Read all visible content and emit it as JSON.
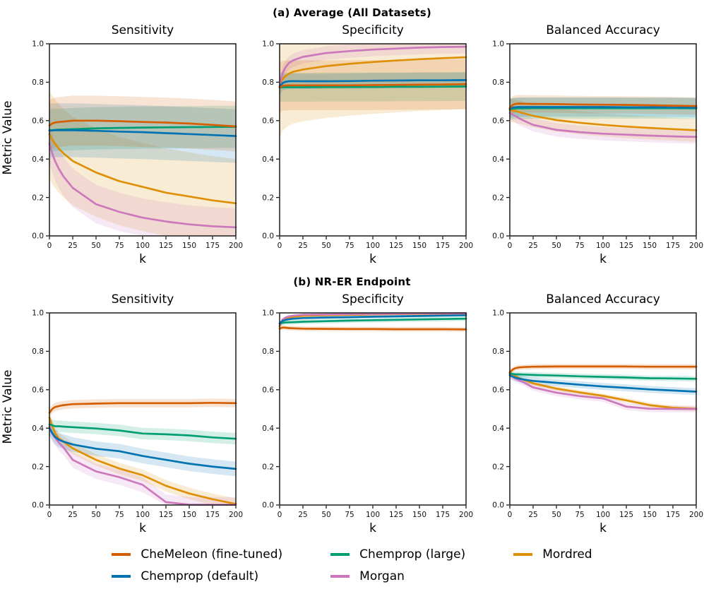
{
  "figure": {
    "ylabel": "Metric Value",
    "xlabel": "k",
    "sections": [
      {
        "label": "(a) Average (All Datasets)"
      },
      {
        "label": "(b) NR-ER Endpoint"
      }
    ]
  },
  "legend": {
    "position": "bottom-center",
    "items": [
      {
        "label": "CheMeleon (fine-tuned)",
        "color": "#d55e00"
      },
      {
        "label": "Chemprop (default)",
        "color": "#0173b2"
      },
      {
        "label": "Chemprop (large)",
        "color": "#029e73"
      },
      {
        "label": "Morgan",
        "color": "#cc78bc"
      },
      {
        "label": "Mordred",
        "color": "#de8f05"
      }
    ]
  },
  "chart_data": [
    {
      "type": "line",
      "section": "(a) Average (All Datasets)",
      "title": "Sensitivity",
      "xlabel": "k",
      "ylabel": "Metric Value",
      "xlim": [
        0,
        200
      ],
      "ylim": [
        0.0,
        1.0
      ],
      "xticks": [
        0,
        25,
        50,
        75,
        100,
        125,
        150,
        175,
        200
      ],
      "yticks": [
        0.0,
        0.2,
        0.4,
        0.6,
        0.8,
        1.0
      ],
      "grid": false,
      "x": [
        0,
        3,
        6,
        10,
        15,
        25,
        50,
        75,
        100,
        125,
        150,
        175,
        200
      ],
      "series": [
        {
          "name": "Mordred",
          "color": "#de8f05",
          "band": 0.23,
          "values": [
            0.53,
            0.5,
            0.48,
            0.455,
            0.43,
            0.39,
            0.33,
            0.285,
            0.255,
            0.225,
            0.205,
            0.185,
            0.17
          ]
        },
        {
          "name": "Morgan",
          "color": "#cc78bc",
          "band": 0.1,
          "values": [
            0.48,
            0.43,
            0.39,
            0.35,
            0.31,
            0.25,
            0.165,
            0.125,
            0.095,
            0.075,
            0.06,
            0.05,
            0.045
          ]
        },
        {
          "name": "Chemprop (large)",
          "color": "#029e73",
          "band": 0.11,
          "values": [
            0.55,
            0.55,
            0.552,
            0.553,
            0.554,
            0.556,
            0.56,
            0.562,
            0.564,
            0.565,
            0.566,
            0.567,
            0.568
          ]
        },
        {
          "name": "Chemprop (default)",
          "color": "#0173b2",
          "band": 0.14,
          "values": [
            0.548,
            0.549,
            0.55,
            0.55,
            0.55,
            0.55,
            0.547,
            0.543,
            0.54,
            0.535,
            0.53,
            0.525,
            0.52
          ]
        },
        {
          "name": "CheMeleon (fine-tuned)",
          "color": "#d55e00",
          "band": 0.13,
          "values": [
            0.575,
            0.585,
            0.59,
            0.593,
            0.595,
            0.6,
            0.6,
            0.597,
            0.593,
            0.59,
            0.585,
            0.578,
            0.57
          ]
        }
      ]
    },
    {
      "type": "line",
      "section": "(a) Average (All Datasets)",
      "title": "Specificity",
      "xlabel": "k",
      "ylabel": "Metric Value",
      "xlim": [
        0,
        200
      ],
      "ylim": [
        0.0,
        1.0
      ],
      "xticks": [
        0,
        25,
        50,
        75,
        100,
        125,
        150,
        175,
        200
      ],
      "yticks": [
        0.0,
        0.2,
        0.4,
        0.6,
        0.8,
        1.0
      ],
      "grid": false,
      "x": [
        0,
        3,
        6,
        10,
        15,
        25,
        50,
        75,
        100,
        125,
        150,
        175,
        200
      ],
      "series": [
        {
          "name": "Mordred",
          "color": "#de8f05",
          "band": 0.27,
          "values": [
            0.775,
            0.815,
            0.83,
            0.845,
            0.855,
            0.866,
            0.884,
            0.896,
            0.905,
            0.913,
            0.92,
            0.925,
            0.93
          ]
        },
        {
          "name": "Morgan",
          "color": "#cc78bc",
          "band": 0.035,
          "values": [
            0.78,
            0.845,
            0.875,
            0.9,
            0.915,
            0.932,
            0.952,
            0.962,
            0.97,
            0.975,
            0.98,
            0.983,
            0.985
          ]
        },
        {
          "name": "Chemprop (large)",
          "color": "#029e73",
          "band": 0.075,
          "values": [
            0.773,
            0.774,
            0.774,
            0.774,
            0.774,
            0.774,
            0.775,
            0.775,
            0.775,
            0.776,
            0.776,
            0.777,
            0.778
          ]
        },
        {
          "name": "Chemprop (default)",
          "color": "#0173b2",
          "band": 0.04,
          "values": [
            0.775,
            0.795,
            0.802,
            0.805,
            0.806,
            0.805,
            0.805,
            0.806,
            0.808,
            0.809,
            0.81,
            0.81,
            0.811
          ]
        },
        {
          "name": "CheMeleon (fine-tuned)",
          "color": "#d55e00",
          "band": 0.13,
          "values": [
            0.772,
            0.781,
            0.783,
            0.784,
            0.784,
            0.784,
            0.784,
            0.784,
            0.785,
            0.786,
            0.787,
            0.788,
            0.79
          ]
        }
      ]
    },
    {
      "type": "line",
      "section": "(a) Average (All Datasets)",
      "title": "Balanced Accuracy",
      "xlabel": "k",
      "ylabel": "Metric Value",
      "xlim": [
        0,
        200
      ],
      "ylim": [
        0.0,
        1.0
      ],
      "xticks": [
        0,
        25,
        50,
        75,
        100,
        125,
        150,
        175,
        200
      ],
      "yticks": [
        0.0,
        0.2,
        0.4,
        0.6,
        0.8,
        1.0
      ],
      "grid": false,
      "x": [
        0,
        3,
        6,
        10,
        15,
        25,
        50,
        75,
        100,
        125,
        150,
        175,
        200
      ],
      "series": [
        {
          "name": "Mordred",
          "color": "#de8f05",
          "band": 0.06,
          "values": [
            0.655,
            0.652,
            0.65,
            0.645,
            0.638,
            0.625,
            0.603,
            0.589,
            0.578,
            0.569,
            0.562,
            0.556,
            0.55
          ]
        },
        {
          "name": "Morgan",
          "color": "#cc78bc",
          "band": 0.035,
          "values": [
            0.64,
            0.632,
            0.624,
            0.612,
            0.6,
            0.578,
            0.552,
            0.54,
            0.532,
            0.527,
            0.522,
            0.518,
            0.515
          ]
        },
        {
          "name": "Chemprop (large)",
          "color": "#029e73",
          "band": 0.055,
          "values": [
            0.66,
            0.662,
            0.663,
            0.664,
            0.664,
            0.665,
            0.665,
            0.665,
            0.665,
            0.665,
            0.665,
            0.665,
            0.664
          ]
        },
        {
          "name": "Chemprop (default)",
          "color": "#0173b2",
          "band": 0.05,
          "values": [
            0.663,
            0.668,
            0.67,
            0.671,
            0.671,
            0.671,
            0.671,
            0.671,
            0.671,
            0.67,
            0.67,
            0.669,
            0.668
          ]
        },
        {
          "name": "CheMeleon (fine-tuned)",
          "color": "#d55e00",
          "band": 0.045,
          "values": [
            0.665,
            0.682,
            0.687,
            0.689,
            0.688,
            0.687,
            0.686,
            0.684,
            0.683,
            0.682,
            0.68,
            0.678,
            0.676
          ]
        }
      ]
    },
    {
      "type": "line",
      "section": "(b) NR-ER Endpoint",
      "title": "Sensitivity",
      "xlabel": "k",
      "ylabel": "Metric Value",
      "xlim": [
        0,
        200
      ],
      "ylim": [
        0.0,
        1.0
      ],
      "xticks": [
        0,
        25,
        50,
        75,
        100,
        125,
        150,
        175,
        200
      ],
      "yticks": [
        0.0,
        0.2,
        0.4,
        0.6,
        0.8,
        1.0
      ],
      "grid": false,
      "x": [
        0,
        3,
        6,
        10,
        15,
        25,
        50,
        75,
        100,
        125,
        150,
        175,
        200
      ],
      "series": [
        {
          "name": "Mordred",
          "color": "#de8f05",
          "band": 0.03,
          "values": [
            0.455,
            0.41,
            0.375,
            0.345,
            0.33,
            0.295,
            0.235,
            0.19,
            0.155,
            0.1,
            0.06,
            0.03,
            0.005
          ]
        },
        {
          "name": "Morgan",
          "color": "#cc78bc",
          "band": 0.04,
          "values": [
            0.41,
            0.37,
            0.35,
            0.325,
            0.3,
            0.235,
            0.175,
            0.145,
            0.105,
            0.015,
            0.002,
            0.001,
            0.001
          ]
        },
        {
          "name": "Chemprop (large)",
          "color": "#029e73",
          "band": 0.03,
          "values": [
            0.42,
            0.415,
            0.41,
            0.41,
            0.408,
            0.405,
            0.398,
            0.388,
            0.372,
            0.368,
            0.362,
            0.352,
            0.345
          ]
        },
        {
          "name": "Chemprop (default)",
          "color": "#0173b2",
          "band": 0.038,
          "values": [
            0.4,
            0.375,
            0.355,
            0.34,
            0.33,
            0.315,
            0.293,
            0.28,
            0.255,
            0.235,
            0.215,
            0.2,
            0.188
          ]
        },
        {
          "name": "CheMeleon (fine-tuned)",
          "color": "#d55e00",
          "band": 0.022,
          "values": [
            0.48,
            0.5,
            0.51,
            0.515,
            0.52,
            0.525,
            0.528,
            0.53,
            0.53,
            0.53,
            0.53,
            0.532,
            0.53
          ]
        }
      ]
    },
    {
      "type": "line",
      "section": "(b) NR-ER Endpoint",
      "title": "Specificity",
      "xlabel": "k",
      "ylabel": "Metric Value",
      "xlim": [
        0,
        200
      ],
      "ylim": [
        0.0,
        1.0
      ],
      "xticks": [
        0,
        25,
        50,
        75,
        100,
        125,
        150,
        175,
        200
      ],
      "yticks": [
        0.0,
        0.2,
        0.4,
        0.6,
        0.8,
        1.0
      ],
      "grid": false,
      "x": [
        0,
        3,
        6,
        10,
        15,
        25,
        50,
        75,
        100,
        125,
        150,
        175,
        200
      ],
      "series": [
        {
          "name": "Mordred",
          "color": "#de8f05",
          "band": 0.004,
          "values": [
            0.93,
            0.955,
            0.968,
            0.975,
            0.98,
            0.985,
            0.988,
            0.99,
            0.992,
            0.994,
            0.995,
            0.996,
            0.997
          ]
        },
        {
          "name": "Morgan",
          "color": "#cc78bc",
          "band": 0.004,
          "values": [
            0.935,
            0.965,
            0.975,
            0.982,
            0.986,
            0.99,
            0.992,
            0.994,
            0.995,
            0.996,
            0.997,
            0.997,
            0.998
          ]
        },
        {
          "name": "Chemprop (large)",
          "color": "#029e73",
          "band": 0.012,
          "values": [
            0.945,
            0.948,
            0.95,
            0.951,
            0.952,
            0.954,
            0.957,
            0.96,
            0.962,
            0.964,
            0.966,
            0.968,
            0.97
          ]
        },
        {
          "name": "Chemprop (default)",
          "color": "#0173b2",
          "band": 0.006,
          "values": [
            0.945,
            0.958,
            0.963,
            0.967,
            0.97,
            0.973,
            0.976,
            0.978,
            0.98,
            0.982,
            0.984,
            0.986,
            0.988
          ]
        },
        {
          "name": "CheMeleon (fine-tuned)",
          "color": "#d55e00",
          "band": 0.012,
          "values": [
            0.918,
            0.924,
            0.923,
            0.921,
            0.92,
            0.918,
            0.917,
            0.916,
            0.916,
            0.915,
            0.915,
            0.915,
            0.914
          ]
        }
      ]
    },
    {
      "type": "line",
      "section": "(b) NR-ER Endpoint",
      "title": "Balanced Accuracy",
      "xlabel": "k",
      "ylabel": "Metric Value",
      "xlim": [
        0,
        200
      ],
      "ylim": [
        0.0,
        1.0
      ],
      "xticks": [
        0,
        25,
        50,
        75,
        100,
        125,
        150,
        175,
        200
      ],
      "yticks": [
        0.0,
        0.2,
        0.4,
        0.6,
        0.8,
        1.0
      ],
      "grid": false,
      "x": [
        0,
        3,
        6,
        10,
        15,
        25,
        50,
        75,
        100,
        125,
        150,
        175,
        200
      ],
      "series": [
        {
          "name": "Mordred",
          "color": "#de8f05",
          "band": 0.012,
          "values": [
            0.69,
            0.678,
            0.67,
            0.66,
            0.652,
            0.633,
            0.606,
            0.586,
            0.568,
            0.545,
            0.52,
            0.506,
            0.501
          ]
        },
        {
          "name": "Morgan",
          "color": "#cc78bc",
          "band": 0.018,
          "values": [
            0.68,
            0.668,
            0.658,
            0.648,
            0.638,
            0.612,
            0.585,
            0.567,
            0.555,
            0.512,
            0.501,
            0.5,
            0.5
          ]
        },
        {
          "name": "Chemprop (large)",
          "color": "#029e73",
          "band": 0.014,
          "values": [
            0.685,
            0.682,
            0.68,
            0.68,
            0.679,
            0.677,
            0.674,
            0.67,
            0.667,
            0.664,
            0.66,
            0.659,
            0.657
          ]
        },
        {
          "name": "Chemprop (default)",
          "color": "#0173b2",
          "band": 0.018,
          "values": [
            0.675,
            0.668,
            0.663,
            0.658,
            0.653,
            0.646,
            0.636,
            0.626,
            0.617,
            0.61,
            0.602,
            0.596,
            0.59
          ]
        },
        {
          "name": "CheMeleon (fine-tuned)",
          "color": "#d55e00",
          "band": 0.013,
          "values": [
            0.69,
            0.705,
            0.712,
            0.716,
            0.718,
            0.72,
            0.721,
            0.721,
            0.721,
            0.721,
            0.72,
            0.72,
            0.72
          ]
        }
      ]
    }
  ]
}
